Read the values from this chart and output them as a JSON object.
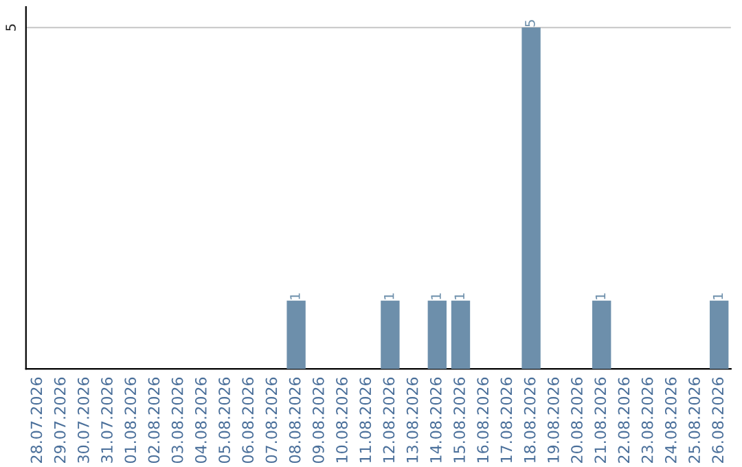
{
  "chart_data": {
    "type": "bar",
    "categories": [
      "28.07.2026",
      "29.07.2026",
      "30.07.2026",
      "31.07.2026",
      "01.08.2026",
      "02.08.2026",
      "03.08.2026",
      "04.08.2026",
      "05.08.2026",
      "06.08.2026",
      "07.08.2026",
      "08.08.2026",
      "09.08.2026",
      "10.08.2026",
      "11.08.2026",
      "12.08.2026",
      "13.08.2026",
      "14.08.2026",
      "15.08.2026",
      "16.08.2026",
      "17.08.2026",
      "18.08.2026",
      "19.08.2026",
      "20.08.2026",
      "21.08.2026",
      "22.08.2026",
      "23.08.2026",
      "24.08.2026",
      "25.08.2026",
      "26.08.2026"
    ],
    "values": [
      0,
      0,
      0,
      0,
      0,
      0,
      0,
      0,
      0,
      0,
      0,
      1,
      0,
      0,
      0,
      1,
      0,
      1,
      1,
      0,
      0,
      5,
      0,
      0,
      1,
      0,
      0,
      0,
      0,
      1
    ],
    "value_labels": [
      null,
      null,
      null,
      null,
      null,
      null,
      null,
      null,
      null,
      null,
      null,
      "1",
      null,
      null,
      null,
      "1",
      null,
      "1",
      "1",
      null,
      null,
      "5",
      null,
      null,
      "1",
      null,
      null,
      null,
      null,
      "1"
    ],
    "color": "#6d8fab",
    "ylim": [
      0,
      5.3
    ],
    "yticks": [
      5
    ],
    "grid": "y"
  }
}
